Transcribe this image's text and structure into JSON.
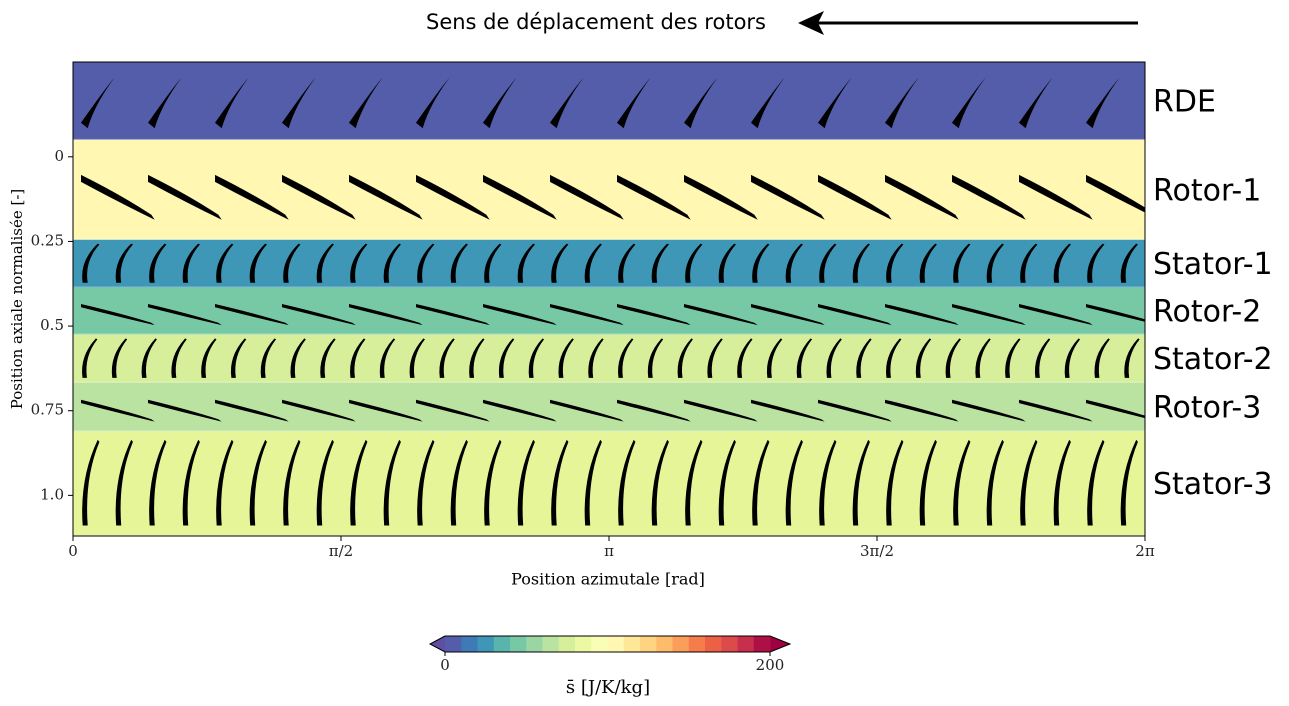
{
  "chart_data": {
    "type": "contour",
    "title": "Sens de déplacement des rotors",
    "xlabel": "Position azimutale [rad]",
    "ylabel": "Position axiale normalisée [-]",
    "xlim": [
      0,
      6.2832
    ],
    "xticks": [
      0,
      {
        "value": 1.5708,
        "label": "π/2"
      },
      {
        "value": 3.1416,
        "label": "π"
      },
      {
        "value": 4.7124,
        "label": "3π/2"
      },
      {
        "value": 6.2832,
        "label": "2π"
      }
    ],
    "ylim": [
      -0.28,
      1.12
    ],
    "yticks": [
      0,
      0.25,
      0.5,
      0.75,
      {
        "value": 1,
        "label": "1.0"
      }
    ],
    "y_inverted": true,
    "zones": [
      {
        "name": "RDE",
        "range": [
          -0.28,
          -0.05
        ],
        "s": 5,
        "blades": 16,
        "blade_shape": "airfoil"
      },
      {
        "name": "Rotor-1",
        "range": [
          -0.05,
          0.245
        ],
        "s": 105,
        "blades": 16,
        "blade_shape": "slanted"
      },
      {
        "name": "Stator-1",
        "range": [
          0.245,
          0.386
        ],
        "s": 25,
        "blades": 32,
        "blade_shape": "curved"
      },
      {
        "name": "Rotor-2",
        "range": [
          0.386,
          0.525
        ],
        "s": 45,
        "blades": 16,
        "blade_shape": "slanted"
      },
      {
        "name": "Stator-2",
        "range": [
          0.525,
          0.667
        ],
        "s": 75,
        "blades": 36,
        "blade_shape": "curved"
      },
      {
        "name": "Rotor-3",
        "range": [
          0.667,
          0.811
        ],
        "s": 65,
        "blades": 16,
        "blade_shape": "slanted"
      },
      {
        "name": "Stator-3",
        "range": [
          0.811,
          1.12
        ],
        "s": 80,
        "blades": 32,
        "blade_shape": "curved"
      }
    ],
    "colorbar": {
      "label": "s̄ [J/K/kg]",
      "lim": [
        0,
        200
      ],
      "ticks": [
        0,
        200
      ],
      "colors": [
        "#5e4fa2",
        "#3288bd",
        "#66c2a5",
        "#abdda4",
        "#e6f598",
        "#ffffbf",
        "#fee08b",
        "#fdae61",
        "#f46d43",
        "#d53e4f",
        "#9e0142"
      ]
    }
  }
}
